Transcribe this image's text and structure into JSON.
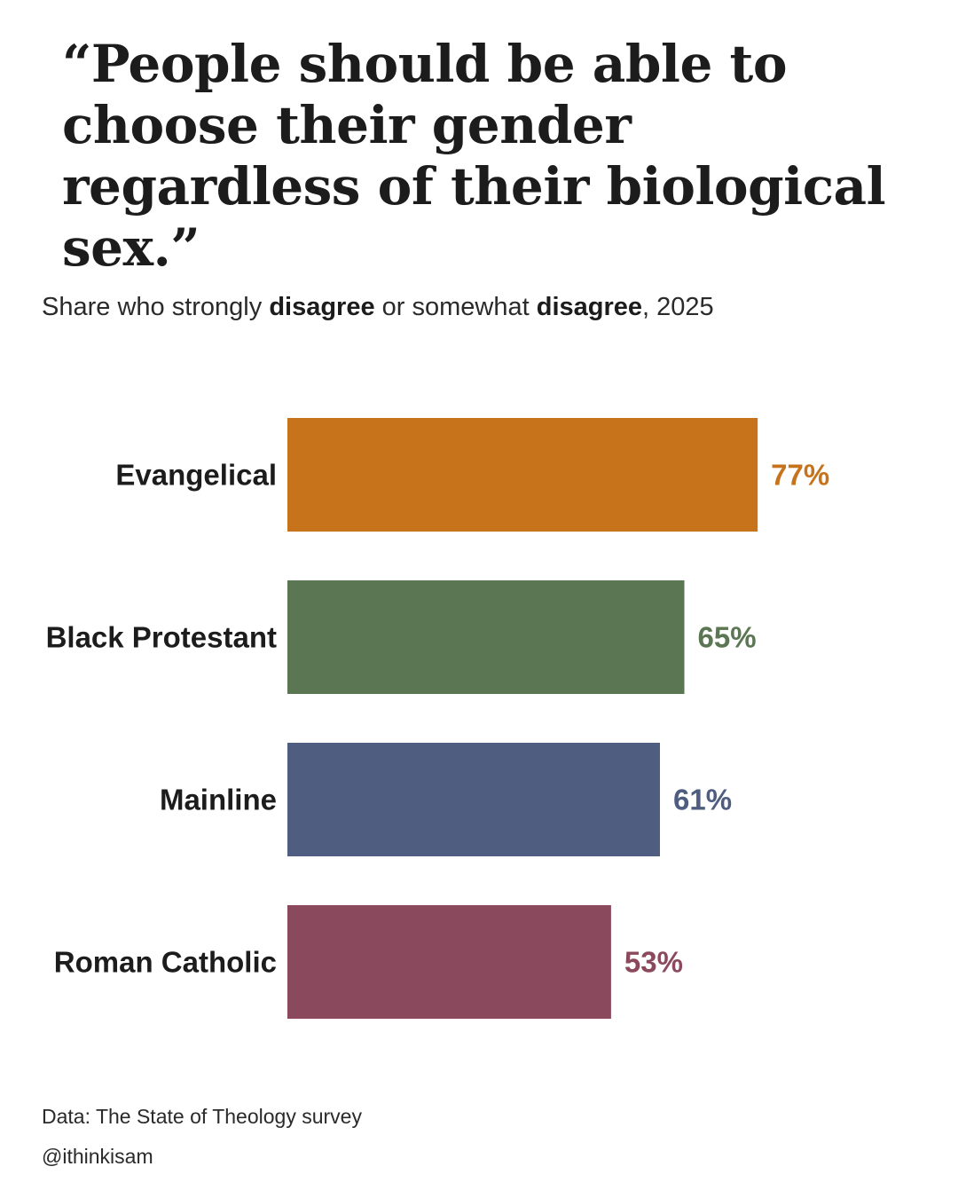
{
  "title": "“People should be able to choose their gender regardless of their biological sex.”",
  "subtitle": {
    "part1": "Share who strongly ",
    "bold1": "disagree",
    "part2": " or somewhat ",
    "bold2": "disagree",
    "part3": ", 2025"
  },
  "chart_data": {
    "type": "bar",
    "orientation": "horizontal",
    "categories": [
      "Evangelical",
      "Black Protestant",
      "Mainline",
      "Roman Catholic"
    ],
    "values": [
      77,
      65,
      61,
      53
    ],
    "value_labels": [
      "77%",
      "65%",
      "61%",
      "53%"
    ],
    "colors": [
      "#c6731c",
      "#5b7652",
      "#4e5d80",
      "#8b495e"
    ],
    "xlim": [
      0,
      100
    ],
    "grid": false
  },
  "footer": {
    "source": "Data: The State of Theology survey",
    "credit": "@ithinkisam"
  }
}
